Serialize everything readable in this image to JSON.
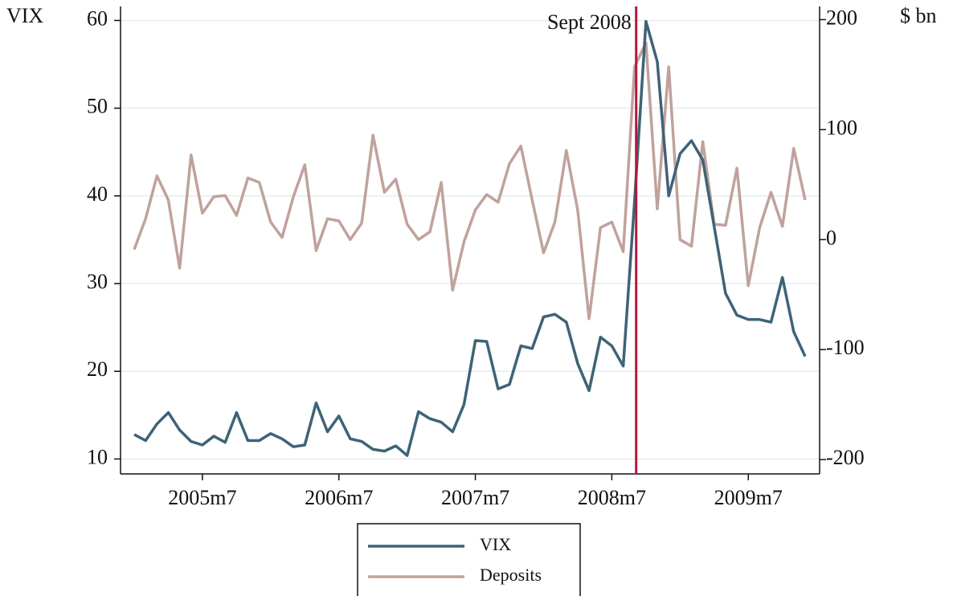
{
  "chart_data": {
    "type": "line",
    "y_label": "VIX",
    "y2_label": "$ bn",
    "x": [
      "2005m1",
      "2005m2",
      "2005m3",
      "2005m4",
      "2005m5",
      "2005m6",
      "2005m7",
      "2005m8",
      "2005m9",
      "2005m10",
      "2005m11",
      "2005m12",
      "2006m1",
      "2006m2",
      "2006m3",
      "2006m4",
      "2006m5",
      "2006m6",
      "2006m7",
      "2006m8",
      "2006m9",
      "2006m10",
      "2006m11",
      "2006m12",
      "2007m1",
      "2007m2",
      "2007m3",
      "2007m4",
      "2007m5",
      "2007m6",
      "2007m7",
      "2007m8",
      "2007m9",
      "2007m10",
      "2007m11",
      "2007m12",
      "2008m1",
      "2008m2",
      "2008m3",
      "2008m4",
      "2008m5",
      "2008m6",
      "2008m7",
      "2008m8",
      "2008m9",
      "2008m10",
      "2008m11",
      "2008m12",
      "2009m1",
      "2009m2",
      "2009m3",
      "2009m4",
      "2009m5",
      "2009m6",
      "2009m7",
      "2009m8",
      "2009m9",
      "2009m10",
      "2009m11",
      "2009m12"
    ],
    "series": [
      {
        "name": "VIX",
        "color": "#3e6377",
        "values": [
          12.8,
          12.1,
          14.0,
          15.3,
          13.3,
          12.0,
          11.6,
          12.6,
          11.9,
          15.3,
          12.1,
          12.1,
          12.9,
          12.3,
          11.4,
          11.6,
          16.4,
          13.1,
          14.9,
          12.3,
          12.0,
          11.1,
          10.9,
          11.5,
          10.4,
          15.4,
          14.6,
          14.2,
          13.1,
          16.2,
          23.5,
          23.4,
          18.0,
          18.5,
          22.9,
          22.6,
          26.2,
          26.5,
          25.6,
          20.9,
          17.8,
          23.9,
          22.9,
          20.6,
          39.4,
          59.9,
          55.3,
          40.0,
          44.8,
          46.3,
          44.1,
          36.5,
          28.9,
          26.4,
          25.9,
          25.9,
          25.6,
          30.7,
          24.5,
          21.7
        ]
      },
      {
        "name": "Deposits",
        "color": "#c0a29c",
        "axis": "y2",
        "values": [
          -9,
          19,
          58,
          36,
          -26,
          77,
          24,
          39,
          40,
          22,
          56,
          52,
          16,
          2,
          39,
          68,
          -10,
          19,
          17,
          0,
          15,
          95,
          43,
          55,
          14,
          0,
          7,
          52,
          -46,
          -2,
          27,
          41,
          34,
          69,
          85,
          36,
          -12,
          16,
          81,
          27,
          -72,
          11,
          16,
          -11,
          157,
          179,
          28,
          157,
          0,
          -6,
          89,
          14,
          13,
          65,
          -42,
          11,
          43,
          12,
          83,
          36
        ]
      }
    ],
    "annotations": [
      {
        "x": "2008m9",
        "label": "Sept 2008",
        "color": "#b5173a"
      }
    ],
    "xticks": [
      "2005m7",
      "2006m7",
      "2007m7",
      "2008m7",
      "2009m7"
    ],
    "ylim": [
      8.3,
      61.6
    ],
    "yticks": [
      10,
      20,
      30,
      40,
      50,
      60
    ],
    "y2lim": [
      -213,
      212
    ],
    "y2ticks": [
      -200,
      -100,
      0,
      100,
      200
    ],
    "grid": true,
    "legend": "bottom"
  }
}
